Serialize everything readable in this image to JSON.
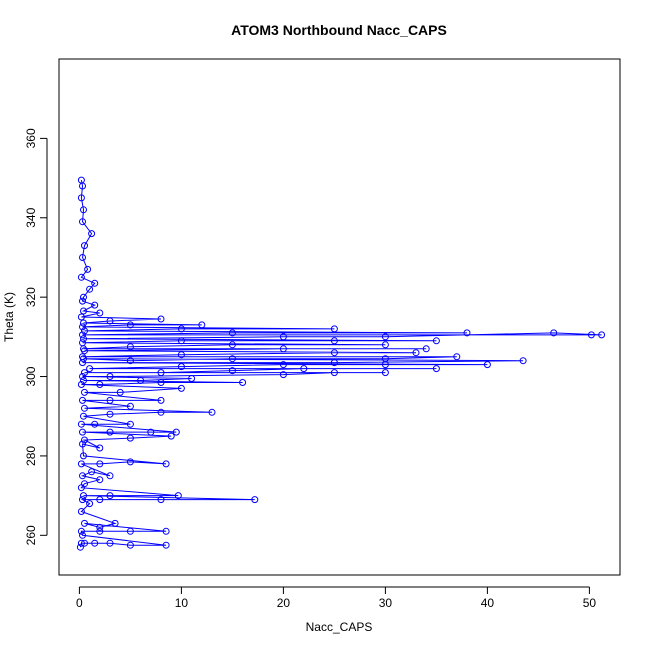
{
  "chart_data": {
    "type": "scatter",
    "title": "ATOM3 Northbound Nacc_CAPS",
    "xlabel": "Nacc_CAPS",
    "ylabel": "Theta (K)",
    "xlim": [
      -2,
      53
    ],
    "ylim": [
      250,
      380
    ],
    "x_ticks": [
      0,
      10,
      20,
      30,
      40,
      50
    ],
    "y_ticks": [
      260,
      280,
      300,
      320,
      340,
      360
    ],
    "marker": "open-circle",
    "lines": "connected",
    "color": "#0000ff",
    "grid": false,
    "legend": "none",
    "series": [
      {
        "points": [
          [
            0.1,
            257
          ],
          [
            0.2,
            258
          ],
          [
            0.5,
            258
          ],
          [
            1.5,
            258
          ],
          [
            3,
            258
          ],
          [
            5,
            257.5
          ],
          [
            8.5,
            257.5
          ],
          [
            0.3,
            260
          ],
          [
            0.2,
            261
          ],
          [
            2,
            261
          ],
          [
            5,
            261
          ],
          [
            8.5,
            261
          ],
          [
            0.5,
            263
          ],
          [
            2,
            262
          ],
          [
            3.5,
            263
          ],
          [
            0.2,
            266
          ],
          [
            1,
            268
          ],
          [
            0.3,
            269
          ],
          [
            2,
            269
          ],
          [
            8,
            269
          ],
          [
            17.2,
            269
          ],
          [
            0.4,
            270
          ],
          [
            3,
            270
          ],
          [
            9.7,
            270
          ],
          [
            0.2,
            272
          ],
          [
            0.5,
            273
          ],
          [
            2,
            274
          ],
          [
            0.3,
            275
          ],
          [
            1.2,
            276
          ],
          [
            3,
            275
          ],
          [
            0.2,
            278
          ],
          [
            2,
            278
          ],
          [
            5,
            278.5
          ],
          [
            8.5,
            278
          ],
          [
            0.4,
            280
          ],
          [
            0.3,
            283
          ],
          [
            2,
            282
          ],
          [
            0.5,
            284
          ],
          [
            5,
            284.5
          ],
          [
            9,
            285
          ],
          [
            0.3,
            286
          ],
          [
            3,
            286
          ],
          [
            7,
            286
          ],
          [
            9.5,
            286
          ],
          [
            0.2,
            288
          ],
          [
            1.5,
            288
          ],
          [
            5,
            288
          ],
          [
            0.4,
            290
          ],
          [
            3,
            290.5
          ],
          [
            8,
            291
          ],
          [
            13,
            291
          ],
          [
            0.5,
            292
          ],
          [
            5,
            292.5
          ],
          [
            0.3,
            294
          ],
          [
            3,
            294
          ],
          [
            8,
            294
          ],
          [
            0.5,
            296
          ],
          [
            4,
            296
          ],
          [
            10,
            297
          ],
          [
            0.2,
            298
          ],
          [
            2,
            298
          ],
          [
            8,
            298.5
          ],
          [
            16,
            298.5
          ],
          [
            0.4,
            299
          ],
          [
            6,
            299
          ],
          [
            11,
            299.5
          ],
          [
            0.3,
            300
          ],
          [
            3,
            300
          ],
          [
            20,
            300.5
          ],
          [
            25,
            301
          ],
          [
            30,
            301
          ],
          [
            0.5,
            301
          ],
          [
            8,
            301
          ],
          [
            15,
            301.5
          ],
          [
            22,
            302
          ],
          [
            35,
            302
          ],
          [
            1,
            302
          ],
          [
            10,
            302.5
          ],
          [
            20,
            303
          ],
          [
            30,
            303
          ],
          [
            40,
            303
          ],
          [
            0.3,
            303.5
          ],
          [
            25,
            303.5
          ],
          [
            43.5,
            304
          ],
          [
            0.4,
            304.5
          ],
          [
            5,
            304
          ],
          [
            15,
            304.5
          ],
          [
            30,
            304.5
          ],
          [
            37,
            305
          ],
          [
            0.3,
            305
          ],
          [
            10,
            305.5
          ],
          [
            25,
            306
          ],
          [
            33,
            306
          ],
          [
            0.5,
            306.5
          ],
          [
            20,
            307
          ],
          [
            34,
            307
          ],
          [
            0.4,
            307
          ],
          [
            5,
            307.5
          ],
          [
            15,
            308
          ],
          [
            30,
            308
          ],
          [
            0.3,
            308.5
          ],
          [
            10,
            309
          ],
          [
            25,
            309
          ],
          [
            35,
            309
          ],
          [
            0.4,
            309.5
          ],
          [
            20,
            310
          ],
          [
            30,
            310
          ],
          [
            46.5,
            311
          ],
          [
            51.2,
            310.5
          ],
          [
            50.2,
            310.5
          ],
          [
            0.3,
            310.5
          ],
          [
            15,
            311
          ],
          [
            38,
            311
          ],
          [
            0.5,
            311.5
          ],
          [
            10,
            312
          ],
          [
            25,
            312
          ],
          [
            0.3,
            312.5
          ],
          [
            5,
            313
          ],
          [
            12,
            313
          ],
          [
            0.4,
            313.5
          ],
          [
            3,
            314
          ],
          [
            8,
            314.5
          ],
          [
            0.2,
            315
          ],
          [
            2,
            316
          ],
          [
            0.4,
            316.5
          ],
          [
            1.5,
            318
          ],
          [
            0.3,
            319
          ],
          [
            0.4,
            320
          ],
          [
            1,
            322
          ],
          [
            1.5,
            323.5
          ],
          [
            0.2,
            325
          ],
          [
            0.8,
            327
          ],
          [
            0.3,
            330
          ],
          [
            0.5,
            333
          ],
          [
            1.2,
            336
          ],
          [
            0.3,
            339
          ],
          [
            0.4,
            342
          ],
          [
            0.2,
            345
          ],
          [
            0.3,
            348
          ],
          [
            0.2,
            349.5
          ]
        ]
      }
    ]
  }
}
